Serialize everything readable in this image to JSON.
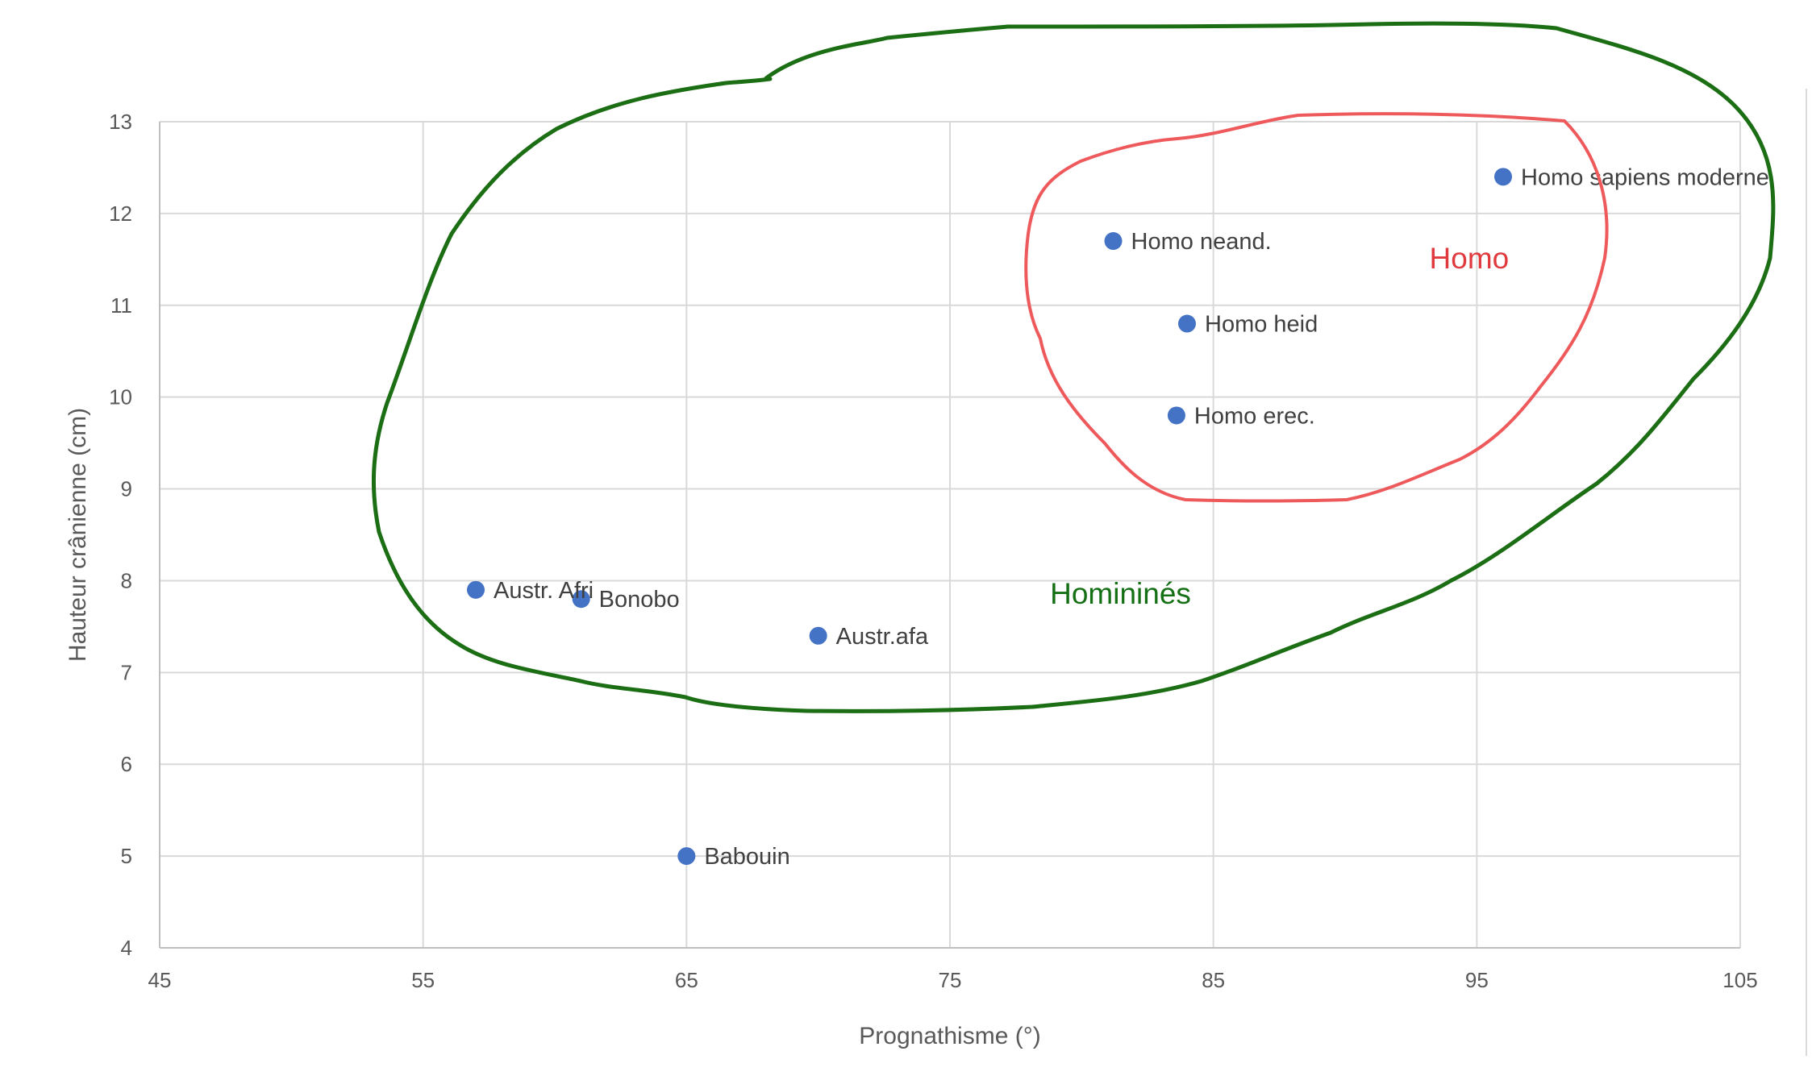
{
  "chart_data": {
    "type": "scatter",
    "xlabel": "Prognathisme (°)",
    "ylabel": "Hauteur crânienne (cm)",
    "xlim": [
      45,
      105
    ],
    "ylim": [
      4,
      13
    ],
    "xticks": [
      45,
      55,
      65,
      75,
      85,
      95,
      105
    ],
    "yticks": [
      4,
      5,
      6,
      7,
      8,
      9,
      10,
      11,
      12,
      13
    ],
    "grid": true,
    "point_color": "#4472C4",
    "points": [
      {
        "label": "Homo sapiens moderne",
        "x": 96,
        "y": 12.4
      },
      {
        "label": "Homo neand.",
        "x": 81.2,
        "y": 11.7
      },
      {
        "label": "Homo heid",
        "x": 84,
        "y": 10.8
      },
      {
        "label": "Homo erec.",
        "x": 83.6,
        "y": 9.8
      },
      {
        "label": "Austr. Afri",
        "x": 57,
        "y": 7.9
      },
      {
        "label": "Bonobo",
        "x": 61,
        "y": 7.8
      },
      {
        "label": "Austr.afa",
        "x": 70,
        "y": 7.4
      },
      {
        "label": "Babouin",
        "x": 65,
        "y": 5.0
      }
    ],
    "annotations": [
      {
        "text": "Homo",
        "color": "#E0393E",
        "stroke": "#EE5A5C",
        "x": 93.2,
        "y": 11.4
      },
      {
        "text": "Homininés",
        "color": "#157015",
        "stroke": "#1B6E13",
        "x": 78.8,
        "y": 7.75
      }
    ]
  }
}
